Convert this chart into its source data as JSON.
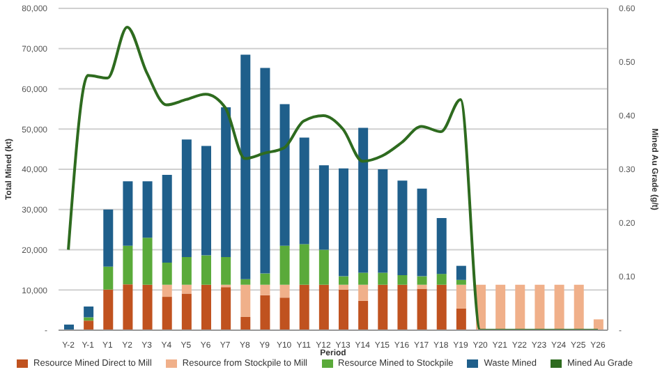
{
  "chart_data": {
    "type": "bar",
    "stacked": true,
    "xlabel": "Period",
    "ylabel": "Total Mined (kt)",
    "y2label": "Mined Au Grade (g/t)",
    "categories": [
      "Y-2",
      "Y-1",
      "Y1",
      "Y2",
      "Y3",
      "Y4",
      "Y5",
      "Y6",
      "Y7",
      "Y8",
      "Y9",
      "Y10",
      "Y11",
      "Y12",
      "Y13",
      "Y14",
      "Y15",
      "Y16",
      "Y17",
      "Y18",
      "Y19",
      "Y20",
      "Y21",
      "Y22",
      "Y23",
      "Y24",
      "Y25",
      "Y26"
    ],
    "series": [
      {
        "name": "Resource Mined Direct to Mill",
        "color": "#c0521f",
        "values": [
          0,
          2400,
          10100,
          11400,
          11300,
          8300,
          9100,
          11300,
          10700,
          3300,
          8700,
          8100,
          11300,
          11300,
          10100,
          7300,
          11300,
          11300,
          10300,
          11300,
          5400,
          0,
          0,
          0,
          0,
          0,
          0,
          0
        ]
      },
      {
        "name": "Resource from Stockpile to Mill",
        "color": "#f0b08a",
        "values": [
          0,
          0,
          0,
          0,
          0,
          3000,
          2200,
          0,
          600,
          8000,
          2600,
          3200,
          0,
          0,
          1200,
          4000,
          0,
          0,
          1000,
          0,
          5900,
          11300,
          11300,
          11300,
          11300,
          11300,
          11300,
          2700
        ]
      },
      {
        "name": "Resource Mined to Stockpile",
        "color": "#5aaa3a",
        "values": [
          0,
          800,
          5700,
          9600,
          11700,
          5500,
          6900,
          7300,
          6900,
          1400,
          2800,
          9700,
          10100,
          8700,
          2100,
          3000,
          3000,
          2400,
          2100,
          2700,
          1200,
          0,
          0,
          0,
          0,
          0,
          0,
          0
        ]
      },
      {
        "name": "Waste Mined",
        "color": "#1f5f8b",
        "values": [
          1400,
          2700,
          14200,
          16000,
          14000,
          21800,
          29200,
          27200,
          37200,
          55800,
          51100,
          35200,
          26500,
          21000,
          26800,
          36000,
          25700,
          23500,
          21800,
          13900,
          3500,
          0,
          0,
          0,
          0,
          0,
          0,
          0
        ]
      },
      {
        "name": "Mined Au Grade",
        "type": "line",
        "axis": "y2",
        "color": "#2e6b1f",
        "values": [
          0.15,
          0.475,
          0.47,
          0.565,
          0.48,
          0.42,
          0.43,
          0.44,
          0.415,
          0.32,
          0.33,
          0.34,
          0.39,
          0.4,
          0.375,
          0.315,
          0.325,
          0.35,
          0.38,
          0.37,
          0.43,
          0,
          0,
          0,
          0,
          0,
          0,
          0
        ]
      }
    ],
    "ylim": [
      0,
      80000
    ],
    "yticks": [
      {
        "value": 0,
        "label": "-"
      },
      {
        "value": 10000,
        "label": "10,000"
      },
      {
        "value": 20000,
        "label": "20,000"
      },
      {
        "value": 30000,
        "label": "30,000"
      },
      {
        "value": 40000,
        "label": "40,000"
      },
      {
        "value": 50000,
        "label": "50,000"
      },
      {
        "value": 60000,
        "label": "60,000"
      },
      {
        "value": 70000,
        "label": "70,000"
      },
      {
        "value": 80000,
        "label": "80,000"
      }
    ],
    "y2lim": [
      0,
      0.6
    ],
    "y2ticks": [
      {
        "value": 0,
        "label": "-"
      },
      {
        "value": 0.1,
        "label": "0.10"
      },
      {
        "value": 0.2,
        "label": "0.20"
      },
      {
        "value": 0.3,
        "label": "0.30"
      },
      {
        "value": 0.4,
        "label": "0.40"
      },
      {
        "value": 0.5,
        "label": "0.50"
      },
      {
        "value": 0.6,
        "label": "0.60"
      }
    ],
    "grid": "y",
    "legend": "bottom",
    "marker": "none"
  }
}
